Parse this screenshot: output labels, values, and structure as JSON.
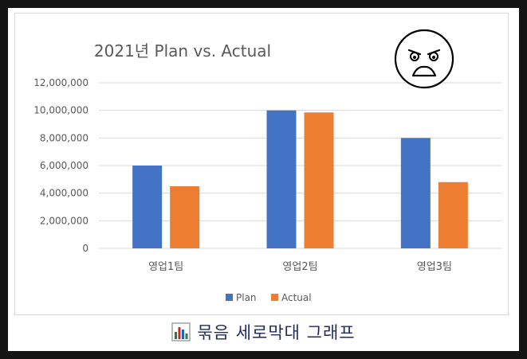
{
  "caption": {
    "text": "묶음 세로막대 그래프",
    "icon": "bar-chart-icon"
  },
  "decoration": {
    "icon": "angry-face-icon"
  },
  "colors": {
    "plan": "#4472C4",
    "actual": "#ED7D31",
    "grid": "#D9D9D9",
    "text": "#595959"
  },
  "chart_data": {
    "type": "bar",
    "title": "2021년 Plan vs. Actual",
    "categories": [
      "영업1팀",
      "영업2팀",
      "영업3팀"
    ],
    "series": [
      {
        "name": "Plan",
        "values": [
          6000000,
          10000000,
          8000000
        ]
      },
      {
        "name": "Actual",
        "values": [
          4500000,
          9850000,
          4800000
        ]
      }
    ],
    "yticks": [
      "12,000,000",
      "10,000,000",
      "8,000,000",
      "6,000,000",
      "4,000,000",
      "2,000,000",
      "0"
    ],
    "ylim": [
      0,
      12000000
    ],
    "grid": true,
    "legend": "bottom"
  }
}
